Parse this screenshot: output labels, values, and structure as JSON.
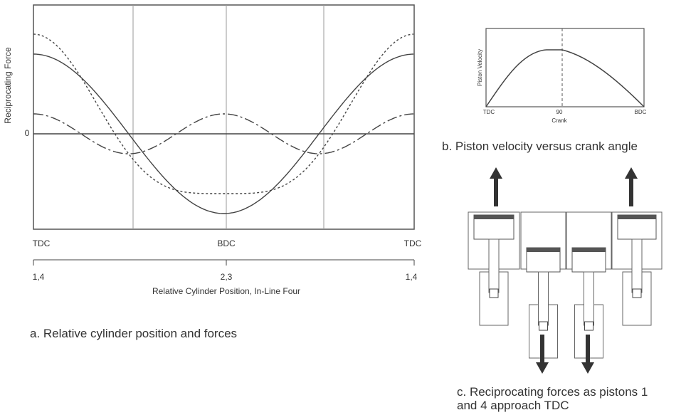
{
  "panel_a": {
    "y_axis_label": "Reciprocating Force",
    "zero_label": "0",
    "positions": [
      "TDC",
      "BDC",
      "TDC"
    ],
    "cylinders": [
      "1,4",
      "2,3",
      "1,4"
    ],
    "x_axis_label": "Relative Cylinder Position, In-Line Four",
    "caption": "a. Relative cylinder position and forces"
  },
  "panel_b": {
    "y_axis_label": "Piston Velocity",
    "x_ticks": [
      "TDC",
      "90",
      "BDC"
    ],
    "x_axis_label": "Crank",
    "caption": "b. Piston velocity versus crank angle"
  },
  "panel_c": {
    "caption_lines": [
      "c. Reciprocating forces as pistons 1",
      "and 4 approach TDC"
    ]
  }
}
